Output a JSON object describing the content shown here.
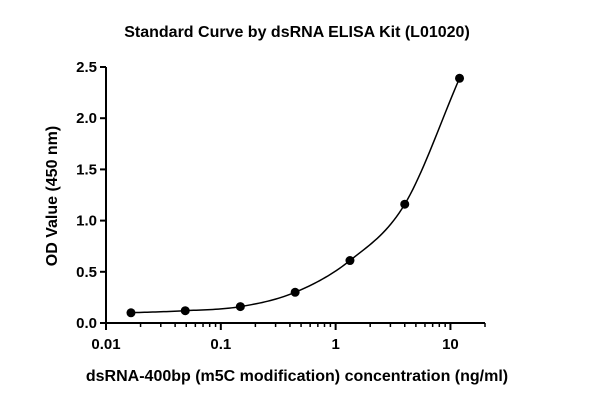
{
  "chart_data": {
    "type": "scatter",
    "title": "Standard Curve by dsRNA ELISA Kit (L01020)",
    "xlabel": "dsRNA-400bp (m5C modification) concentration (ng/ml)",
    "ylabel": "OD Value (450 nm)",
    "x_scale": "log",
    "xlim": [
      0.01,
      20
    ],
    "ylim": [
      0,
      2.5
    ],
    "x_ticks": [
      0.01,
      0.1,
      1,
      10
    ],
    "x_tick_labels": [
      "0.01",
      "0.1",
      "1",
      "10"
    ],
    "y_ticks": [
      0,
      0.5,
      1,
      1.5,
      2,
      2.5
    ],
    "y_tick_labels": [
      "0.0",
      "0.5",
      "1.0",
      "1.5",
      "2.0",
      "2.5"
    ],
    "grid": false,
    "legend": "none",
    "series": [
      {
        "x": [
          0.0165,
          0.049,
          0.148,
          0.444,
          1.333,
          4.0,
          12.0
        ],
        "y": [
          0.1,
          0.12,
          0.16,
          0.3,
          0.61,
          1.16,
          2.39
        ]
      }
    ],
    "fit_curve": true
  }
}
